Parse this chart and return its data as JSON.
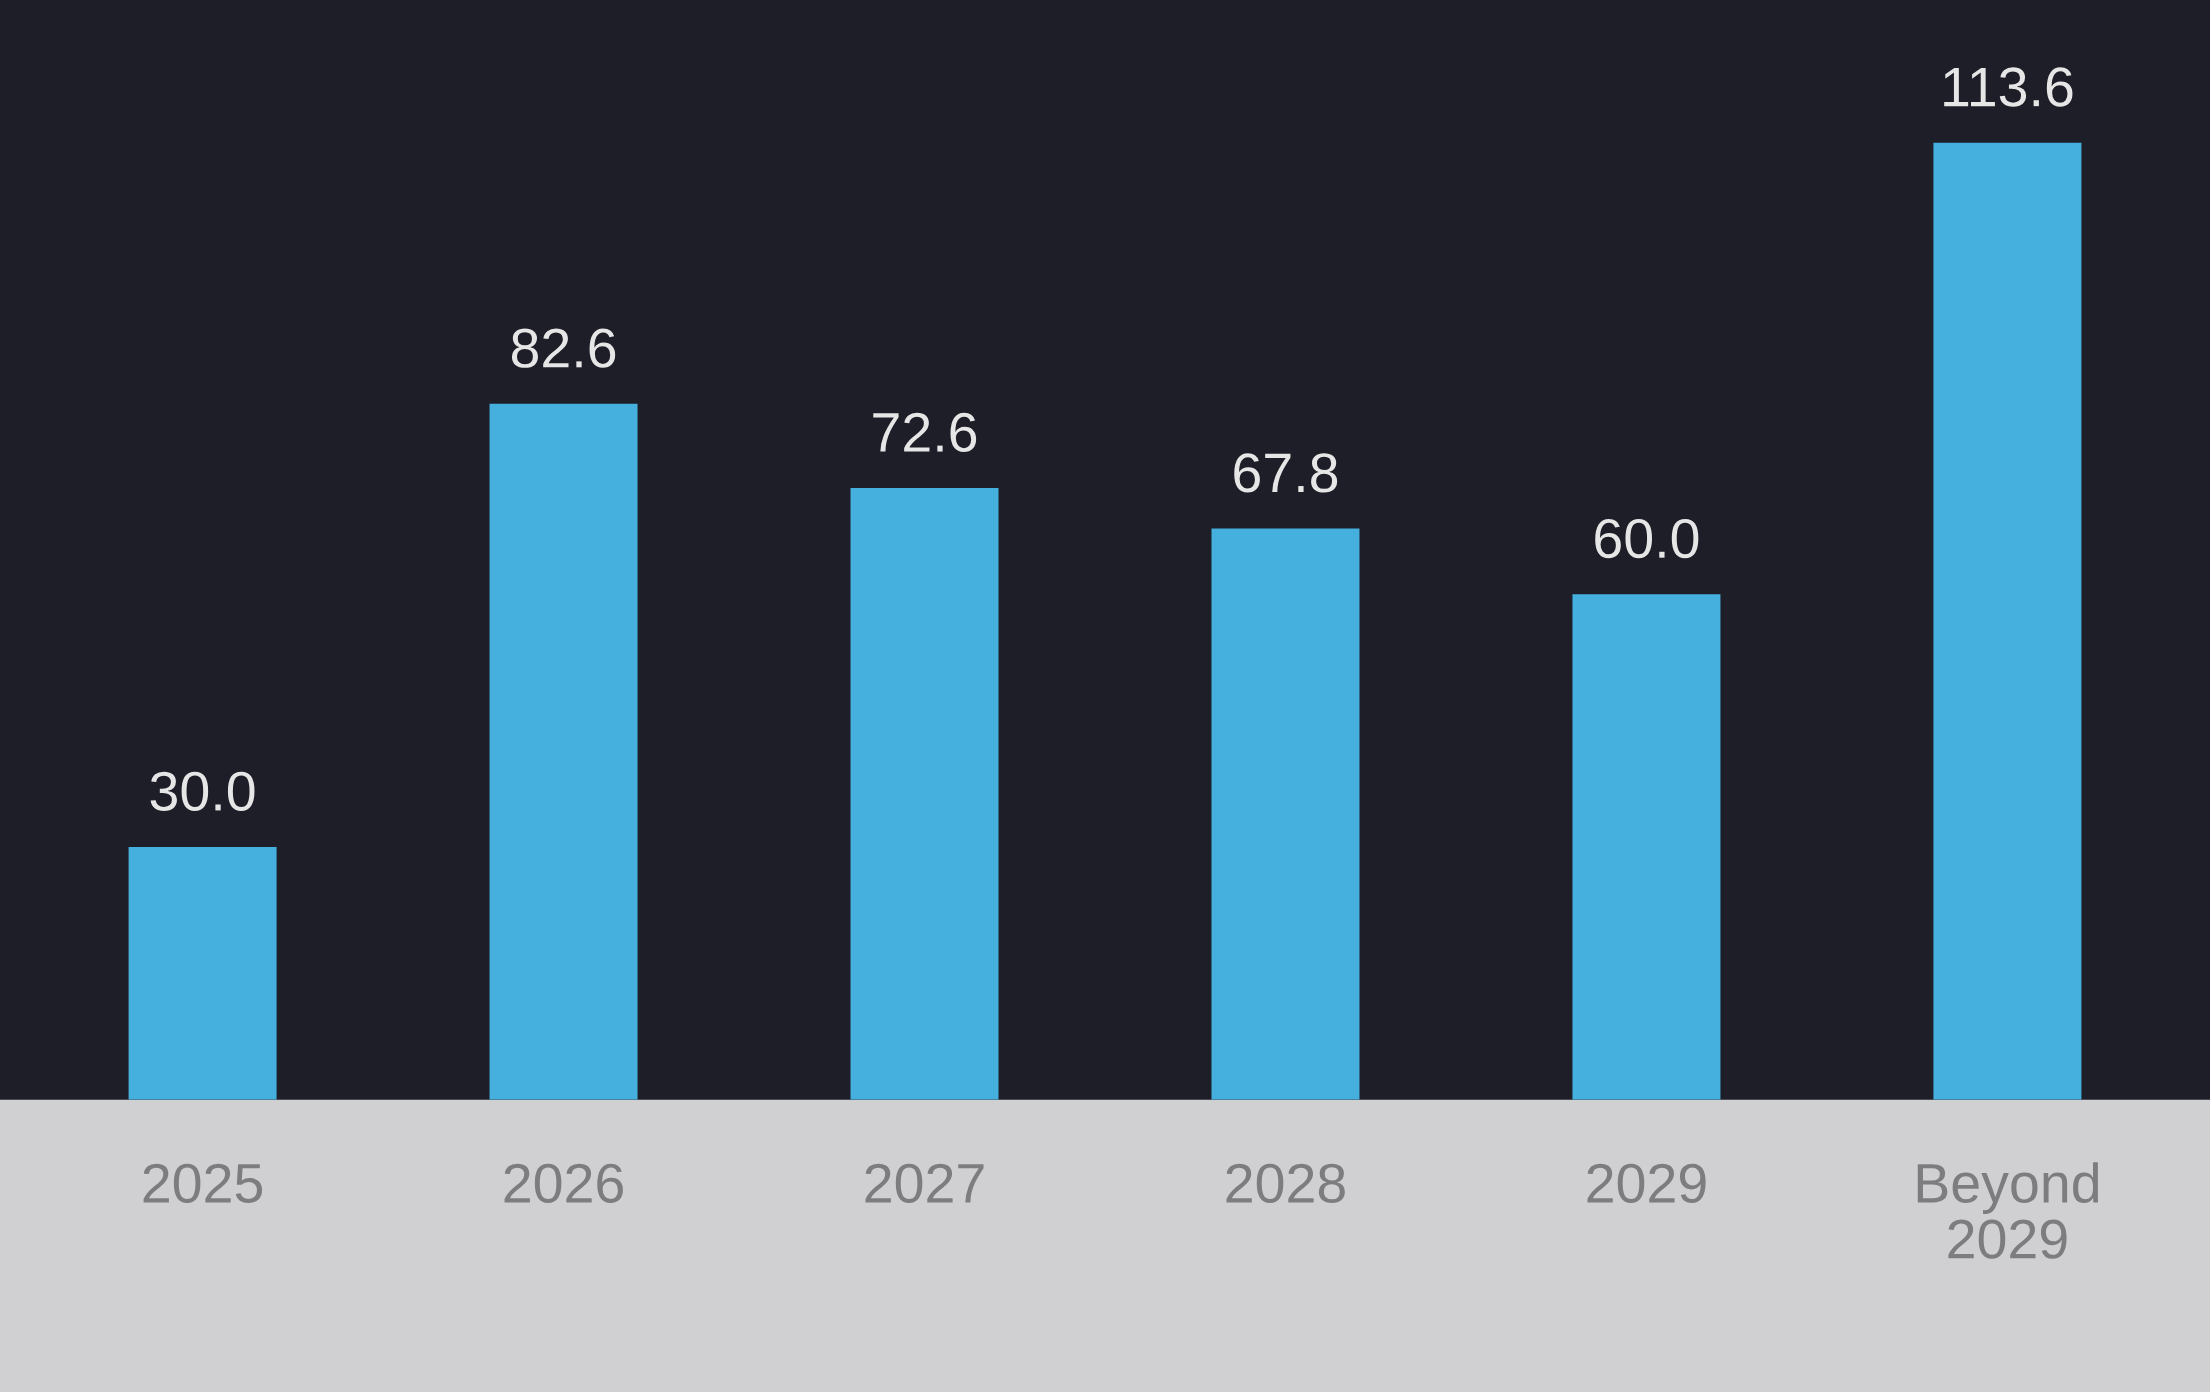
{
  "chart_data": {
    "type": "bar",
    "categories": [
      "2025",
      "2026",
      "2027",
      "2028",
      "2029",
      "Beyond\n2029"
    ],
    "values": [
      30.0,
      82.6,
      72.6,
      67.8,
      60.0,
      113.6
    ],
    "color": "#45b0de",
    "value_labels": [
      "30.0",
      "82.6",
      "72.6",
      "67.8",
      "60.0",
      "113.6"
    ],
    "grid": false,
    "legend": false
  }
}
